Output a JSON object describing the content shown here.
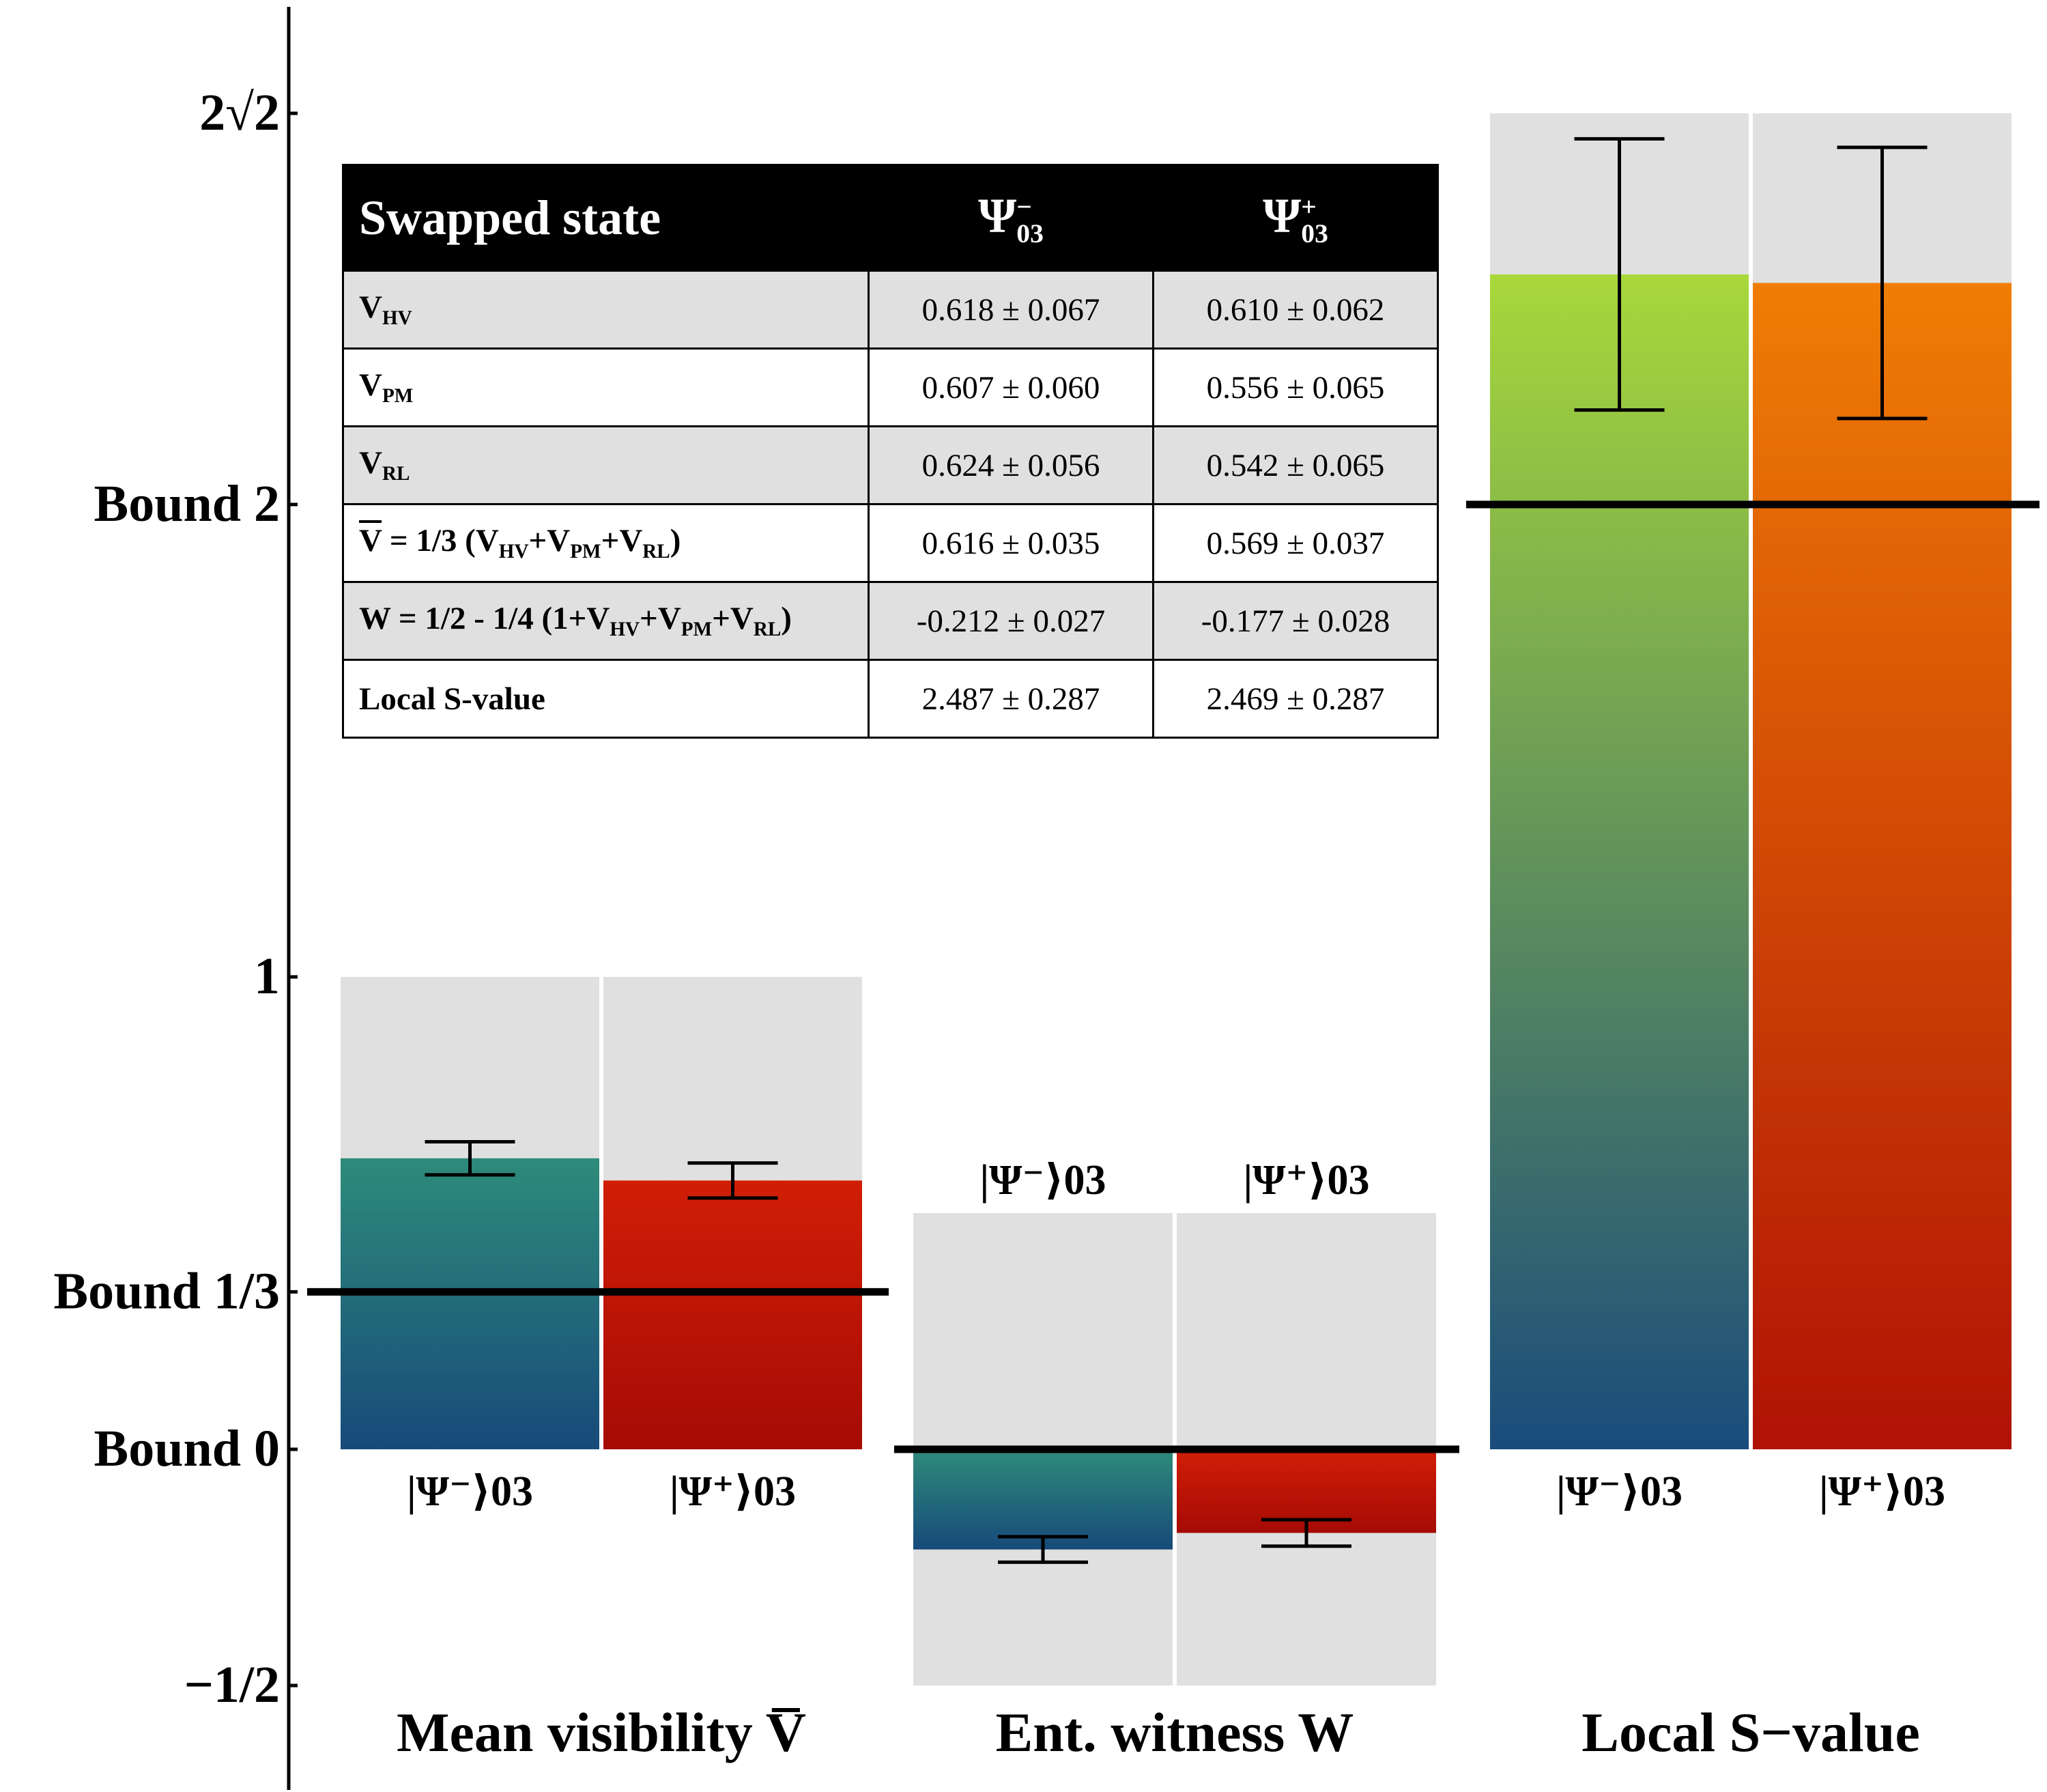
{
  "colors": {
    "panel_bg": "#e0e0e0",
    "minus_top": "#2e8b7a",
    "minus_bottom": "#174a7a",
    "plus_top": "#d11e06",
    "plus_bottom": "#a50b05",
    "s_minus_top": "#a8d83a",
    "s_minus_bottom": "#1a4c7c",
    "s_plus_top": "#f07d05",
    "s_plus_bottom": "#b01205"
  },
  "chart_data": {
    "type": "bar",
    "y_ticks": [
      {
        "label": "2√2",
        "value": 2.828
      },
      {
        "label": "Bound 2",
        "value": 2
      },
      {
        "label": "1",
        "value": 1
      },
      {
        "label": "Bound 1/3",
        "value": 0.3333
      },
      {
        "label": "Bound 0",
        "value": 0
      },
      {
        "label": "−1/2",
        "value": -0.5
      }
    ],
    "ylim": [
      -0.65,
      3.05
    ],
    "groups": [
      {
        "label": "Mean visibility V̅",
        "panel_range": [
          0,
          1
        ],
        "bound": 0.3333,
        "bars": [
          {
            "label": "|Ψ⁻⟩03",
            "value": 0.616,
            "error": 0.035,
            "color": "minus"
          },
          {
            "label": "|Ψ⁺⟩03",
            "value": 0.569,
            "error": 0.037,
            "color": "plus"
          }
        ]
      },
      {
        "label": "Ent. witness W",
        "panel_range": [
          -0.5,
          0.5
        ],
        "bound": 0,
        "bars": [
          {
            "label": "|Ψ⁻⟩03",
            "value": -0.212,
            "error": 0.027,
            "color": "minus"
          },
          {
            "label": "|Ψ⁺⟩03",
            "value": -0.177,
            "error": 0.028,
            "color": "plus"
          }
        ]
      },
      {
        "label": "Local S−value",
        "panel_range": [
          0,
          2.828
        ],
        "bound": 2,
        "bars": [
          {
            "label": "|Ψ⁻⟩03",
            "value": 2.487,
            "error": 0.287,
            "color": "s_minus"
          },
          {
            "label": "|Ψ⁺⟩03",
            "value": 2.469,
            "error": 0.287,
            "color": "s_plus"
          }
        ]
      }
    ]
  },
  "table": {
    "header": {
      "first": "Swapped state",
      "col1": "Ψ",
      "col2": "Ψ",
      "col1_sup": "−",
      "col2_sup": "+",
      "sub": "03"
    },
    "rows": [
      {
        "label": "V",
        "sub": "HV",
        "v1": "0.618 ± 0.067",
        "v2": "0.610 ± 0.062"
      },
      {
        "label": "V",
        "sub": "PM",
        "v1": "0.607 ± 0.060",
        "v2": "0.556 ± 0.065"
      },
      {
        "label": "V",
        "sub": "RL",
        "v1": "0.624 ± 0.056",
        "v2": "0.542 ± 0.065"
      },
      {
        "v1": "0.616 ± 0.035",
        "v2": "0.569 ± 0.037"
      },
      {
        "v1": "-0.212 ± 0.027",
        "v2": "-0.177 ± 0.028"
      },
      {
        "label": "Local S-value",
        "v1": "2.487 ± 0.287",
        "v2": "2.469 ± 0.287"
      }
    ],
    "row4_parts": {
      "vbar": "V",
      "eq": " = 1/3 (",
      "v": "V",
      "hv": "HV",
      "plus": "+",
      "pm": "PM",
      "rl": "RL",
      "close": ")"
    },
    "row5_parts": {
      "w": "W = 1/2 - 1/4 (1+",
      "v": "V",
      "hv": "HV",
      "plus": "+",
      "pm": "PM",
      "rl": "RL",
      "close": ")"
    }
  }
}
